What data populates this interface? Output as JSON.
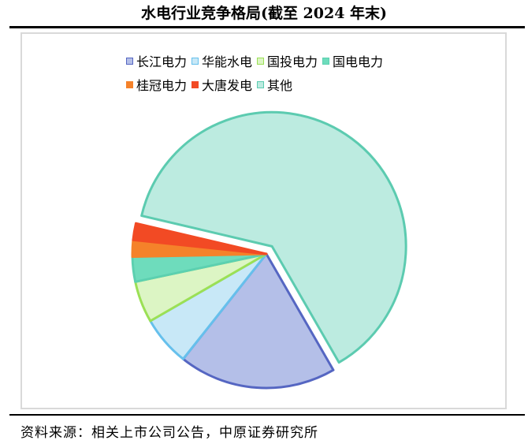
{
  "chart_data": {
    "type": "pie",
    "title": "水电行业竞争格局(截至 2024 年末)",
    "legend_position": "top",
    "exploded": "其他",
    "series": [
      {
        "name": "长江电力",
        "value": 19,
        "fill": "#b4bfe8",
        "stroke": "#5566c2"
      },
      {
        "name": "华能水电",
        "value": 6,
        "fill": "#c8e8f7",
        "stroke": "#66c0ec"
      },
      {
        "name": "国投电力",
        "value": 5,
        "fill": "#dcf5c4",
        "stroke": "#9be055"
      },
      {
        "name": "国电电力",
        "value": 3,
        "fill": "#6edcbc",
        "stroke": "#5cd0b0"
      },
      {
        "name": "桂冠电力",
        "value": 2,
        "fill": "#f5822a",
        "stroke": "#f5822a"
      },
      {
        "name": "大唐发电",
        "value": 2,
        "fill": "#f24a24",
        "stroke": "#f24a24"
      },
      {
        "name": "其他",
        "value": 63,
        "fill": "#bcebe0",
        "stroke": "#5ccbb0"
      }
    ]
  },
  "source": "资料来源：相关上市公司公告，中原证券研究所"
}
